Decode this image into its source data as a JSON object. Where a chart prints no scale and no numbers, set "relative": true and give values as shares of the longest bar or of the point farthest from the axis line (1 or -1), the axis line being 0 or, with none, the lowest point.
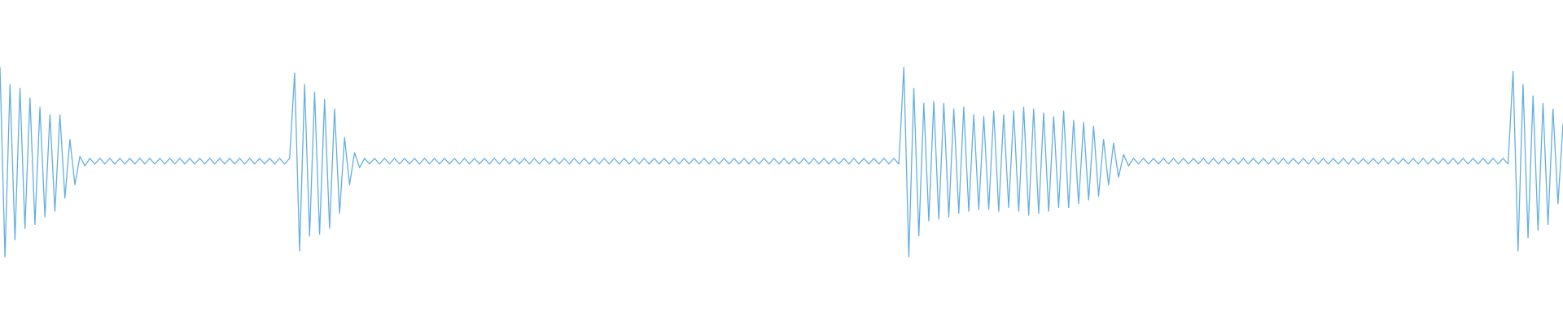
{
  "chart_data": {
    "type": "line",
    "relative": true,
    "categories": [
      null,
      null,
      null,
      null,
      null,
      null,
      null,
      null,
      null,
      null,
      null,
      null,
      null,
      null,
      null,
      null,
      null,
      null,
      null,
      null,
      null,
      null,
      null,
      null,
      null,
      null,
      null,
      null,
      null,
      null,
      null,
      null,
      null,
      null,
      null,
      null,
      null,
      null,
      null,
      null,
      null,
      null,
      null,
      null,
      null,
      null,
      null,
      null,
      null,
      null,
      null,
      null,
      null,
      null,
      null,
      null,
      null,
      null,
      null,
      null,
      null,
      null,
      null,
      null,
      null,
      null,
      null,
      null,
      null,
      null,
      null,
      null,
      null,
      null,
      null,
      null,
      null,
      null,
      null,
      null,
      null,
      null,
      null,
      null,
      null,
      null,
      null,
      null,
      null,
      null,
      null,
      null,
      null,
      null,
      null,
      null,
      null,
      null,
      null,
      null,
      null,
      null,
      null,
      null,
      null,
      null,
      null,
      null,
      null,
      null,
      null,
      null,
      null,
      null,
      null,
      null,
      null,
      null,
      null,
      null,
      null,
      null,
      null,
      null,
      null,
      null,
      null,
      null,
      null,
      null,
      null,
      null,
      null,
      null,
      null,
      null,
      null,
      null,
      null,
      null,
      null,
      null,
      null,
      null,
      null,
      null,
      null,
      null,
      null,
      null,
      null,
      null,
      null,
      null,
      null,
      null,
      null,
      null,
      null,
      null,
      null,
      null,
      null,
      null,
      null,
      null,
      null,
      null,
      null,
      null,
      null,
      null,
      null,
      null,
      null,
      null,
      null,
      null,
      null,
      null,
      null,
      null,
      null,
      null,
      null,
      null,
      null,
      null,
      null,
      null,
      null,
      null,
      null,
      null,
      null,
      null,
      null,
      null,
      null,
      null,
      null,
      null,
      null,
      null,
      null,
      null,
      null,
      null,
      null,
      null,
      null,
      null,
      null,
      null,
      null,
      null,
      null,
      null,
      null,
      null,
      null,
      null,
      null,
      null,
      null,
      null,
      null,
      null,
      null,
      null,
      null,
      null,
      null,
      null,
      null,
      null,
      null,
      null,
      null,
      null,
      null,
      null,
      null,
      null,
      null,
      null,
      null,
      null,
      null,
      null,
      null,
      null,
      null,
      null,
      null,
      null,
      null,
      null,
      null,
      null,
      null,
      null,
      null,
      null,
      null,
      null,
      null,
      null,
      null,
      null,
      null,
      null,
      null,
      null,
      null,
      null,
      null,
      null,
      null,
      null,
      null,
      null,
      null,
      null,
      null,
      null,
      null,
      null,
      null,
      null,
      null,
      null,
      null,
      null,
      null,
      null,
      null,
      null,
      null,
      null,
      null,
      null,
      null,
      null,
      null,
      null,
      null,
      null,
      null,
      null,
      null,
      null,
      null,
      null
    ],
    "series": [
      {
        "color": "#62aee3",
        "values": [
          1.0,
          0.0,
          0.91,
          0.09,
          0.89,
          0.15,
          0.84,
          0.17,
          0.79,
          0.21,
          0.75,
          0.24,
          0.75,
          0.31,
          0.62,
          0.38,
          0.53,
          0.48,
          0.52,
          0.49,
          0.52,
          0.49,
          0.52,
          0.49,
          0.52,
          0.49,
          0.52,
          0.49,
          0.52,
          0.49,
          0.52,
          0.49,
          0.52,
          0.49,
          0.52,
          0.49,
          0.52,
          0.49,
          0.52,
          0.49,
          0.52,
          0.49,
          0.52,
          0.49,
          0.52,
          0.49,
          0.52,
          0.49,
          0.52,
          0.49,
          0.52,
          0.49,
          0.52,
          0.49,
          0.52,
          0.49,
          0.52,
          0.49,
          0.52,
          0.97,
          0.03,
          0.91,
          0.11,
          0.87,
          0.12,
          0.83,
          0.15,
          0.78,
          0.23,
          0.63,
          0.38,
          0.55,
          0.47,
          0.52,
          0.49,
          0.52,
          0.49,
          0.52,
          0.49,
          0.52,
          0.49,
          0.52,
          0.49,
          0.52,
          0.49,
          0.52,
          0.49,
          0.52,
          0.49,
          0.52,
          0.49,
          0.52,
          0.49,
          0.52,
          0.49,
          0.52,
          0.49,
          0.52,
          0.49,
          0.52,
          0.49,
          0.52,
          0.49,
          0.52,
          0.49,
          0.52,
          0.49,
          0.52,
          0.49,
          0.52,
          0.49,
          0.52,
          0.49,
          0.52,
          0.49,
          0.52,
          0.49,
          0.52,
          0.49,
          0.52,
          0.49,
          0.52,
          0.49,
          0.52,
          0.49,
          0.52,
          0.49,
          0.52,
          0.49,
          0.52,
          0.49,
          0.52,
          0.49,
          0.52,
          0.49,
          0.52,
          0.49,
          0.52,
          0.49,
          0.52,
          0.49,
          0.52,
          0.49,
          0.52,
          0.49,
          0.52,
          0.49,
          0.52,
          0.49,
          0.52,
          0.49,
          0.52,
          0.49,
          0.52,
          0.49,
          0.52,
          0.49,
          0.52,
          0.49,
          0.52,
          0.49,
          0.52,
          0.49,
          0.52,
          0.49,
          0.52,
          0.49,
          0.52,
          0.49,
          0.52,
          0.49,
          0.52,
          0.49,
          0.52,
          0.49,
          0.52,
          0.49,
          0.52,
          0.49,
          0.52,
          0.49,
          1.0,
          0.0,
          0.89,
          0.11,
          0.81,
          0.19,
          0.82,
          0.2,
          0.81,
          0.21,
          0.78,
          0.23,
          0.79,
          0.24,
          0.75,
          0.25,
          0.74,
          0.25,
          0.77,
          0.24,
          0.75,
          0.26,
          0.77,
          0.24,
          0.79,
          0.22,
          0.78,
          0.23,
          0.76,
          0.24,
          0.74,
          0.26,
          0.77,
          0.26,
          0.72,
          0.28,
          0.71,
          0.3,
          0.69,
          0.32,
          0.62,
          0.38,
          0.6,
          0.42,
          0.54,
          0.48,
          0.52,
          0.49,
          0.52,
          0.49,
          0.52,
          0.49,
          0.52,
          0.49,
          0.52,
          0.49,
          0.52,
          0.49,
          0.52,
          0.49,
          0.52,
          0.49,
          0.52,
          0.49,
          0.52,
          0.49,
          0.52,
          0.49,
          0.52,
          0.49,
          0.52,
          0.49,
          0.52,
          0.49,
          0.52,
          0.49,
          0.52,
          0.49,
          0.52,
          0.49,
          0.52,
          0.49,
          0.52,
          0.49,
          0.52,
          0.49,
          0.52,
          0.49,
          0.52,
          0.49,
          0.52,
          0.49,
          0.52,
          0.49,
          0.52,
          0.49,
          0.52,
          0.49,
          0.52,
          0.49,
          0.52,
          0.49,
          0.52,
          0.49,
          0.52,
          0.49,
          0.52,
          0.49,
          0.52,
          0.49,
          0.52,
          0.49,
          0.52,
          0.49,
          0.52,
          0.49,
          0.52,
          0.49,
          0.52,
          0.49,
          0.52,
          0.49,
          0.98,
          0.03,
          0.91,
          0.1,
          0.85,
          0.14,
          0.81,
          0.17,
          0.78,
          0.28,
          0.7
        ]
      }
    ]
  }
}
